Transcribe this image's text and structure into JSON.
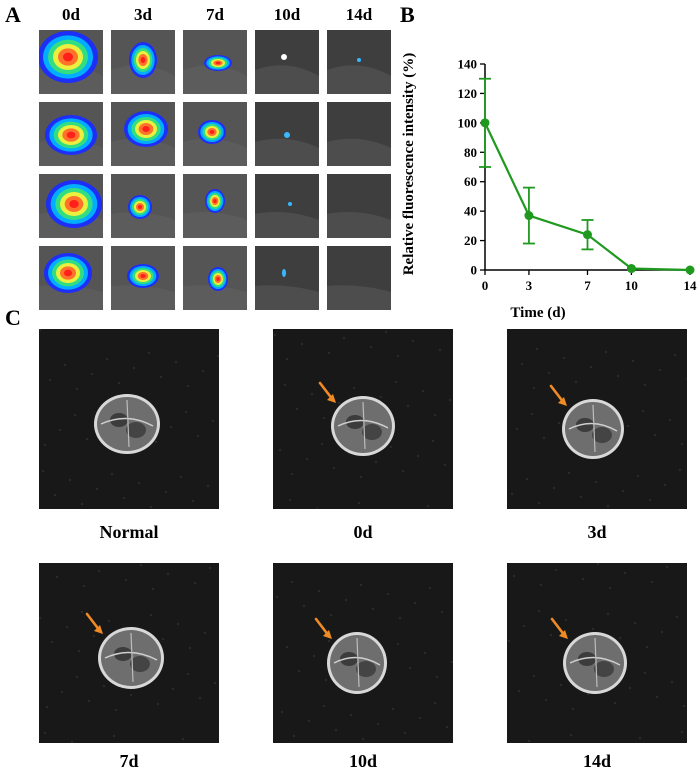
{
  "panels": {
    "a": "A",
    "b": "B",
    "c": "C"
  },
  "panel_a": {
    "columns": [
      "0d",
      "3d",
      "7d",
      "10d",
      "14d"
    ]
  },
  "chart_data": {
    "type": "line",
    "xlabel": "Time (d)",
    "ylabel": "Relative fluorescence intensity (%)",
    "x": [
      0,
      3,
      7,
      10,
      14
    ],
    "x_ticks": [
      "0",
      "3",
      "7",
      "10",
      "14"
    ],
    "y": [
      100,
      37,
      24,
      1,
      0
    ],
    "error": [
      30,
      19,
      10,
      0,
      0
    ],
    "ylim": [
      0,
      140
    ],
    "y_ticks": [
      "0",
      "20",
      "40",
      "60",
      "80",
      "100",
      "120",
      "140"
    ],
    "color": "#1f9a1f",
    "grid": false
  },
  "panel_c": {
    "labels": [
      "Normal",
      "0d",
      "3d",
      "7d",
      "10d",
      "14d"
    ],
    "arrow_color": "#f08a24"
  }
}
